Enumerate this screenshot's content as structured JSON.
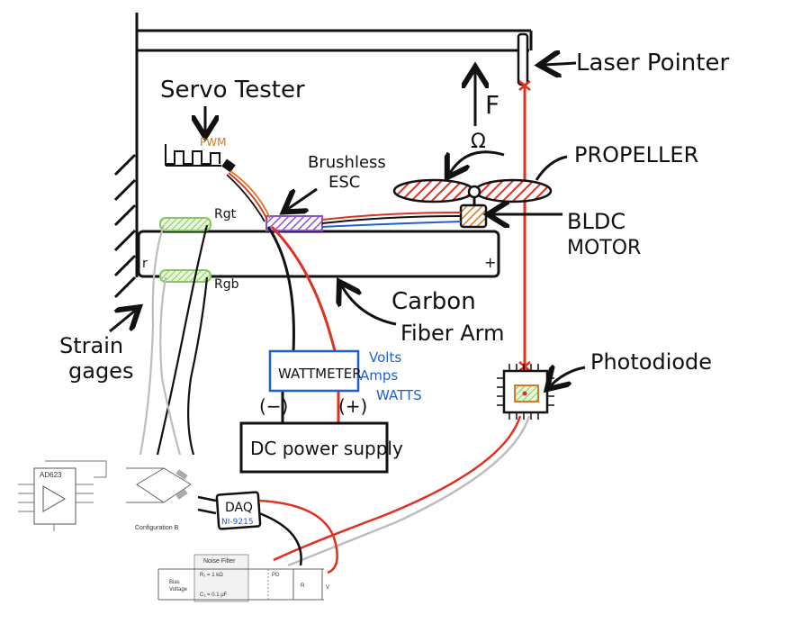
{
  "labels": {
    "servo_tester": "Servo Tester",
    "pwm": "PWM",
    "brushless_esc_1": "Brushless",
    "brushless_esc_2": "ESC",
    "rgt": "Rgt",
    "rgb": "Rgb",
    "force": "F",
    "omega": "Ω",
    "laser_pointer": "Laser Pointer",
    "propeller": "PROPELLER",
    "bldc_1": "BLDC",
    "bldc_2": "MOTOR",
    "carbon_1": "Carbon",
    "carbon_2": "Fiber Arm",
    "photodiode": "Photodiode",
    "strain_1": "Strain",
    "strain_2": "gages",
    "wattmeter": "WATTMETER",
    "volts": "Volts",
    "amps": "Amps",
    "watts": "WATTS",
    "minus": "(−)",
    "plus": "(+)",
    "dc_supply": "DC power supply",
    "daq": "DAQ",
    "ni": "NI-9215",
    "arm_minus": "r",
    "arm_plus": "+"
  },
  "schematics": {
    "ad623": "AD623",
    "config": "Configuration B",
    "noise_filter": "Noise Filter",
    "r1": "R₁ = 1 kΩ",
    "c1": "C₁ = 0.1 μF",
    "bias": "Bias",
    "voltage": "Voltage",
    "pd": "PD",
    "rl": "R",
    "vl": "V"
  },
  "colors": {
    "red": "#e0301e",
    "blue": "#1f5fcf",
    "orange": "#d9781e",
    "green": "#86c95a",
    "purple": "#8a4fd1",
    "gray": "#bdbdbd"
  }
}
